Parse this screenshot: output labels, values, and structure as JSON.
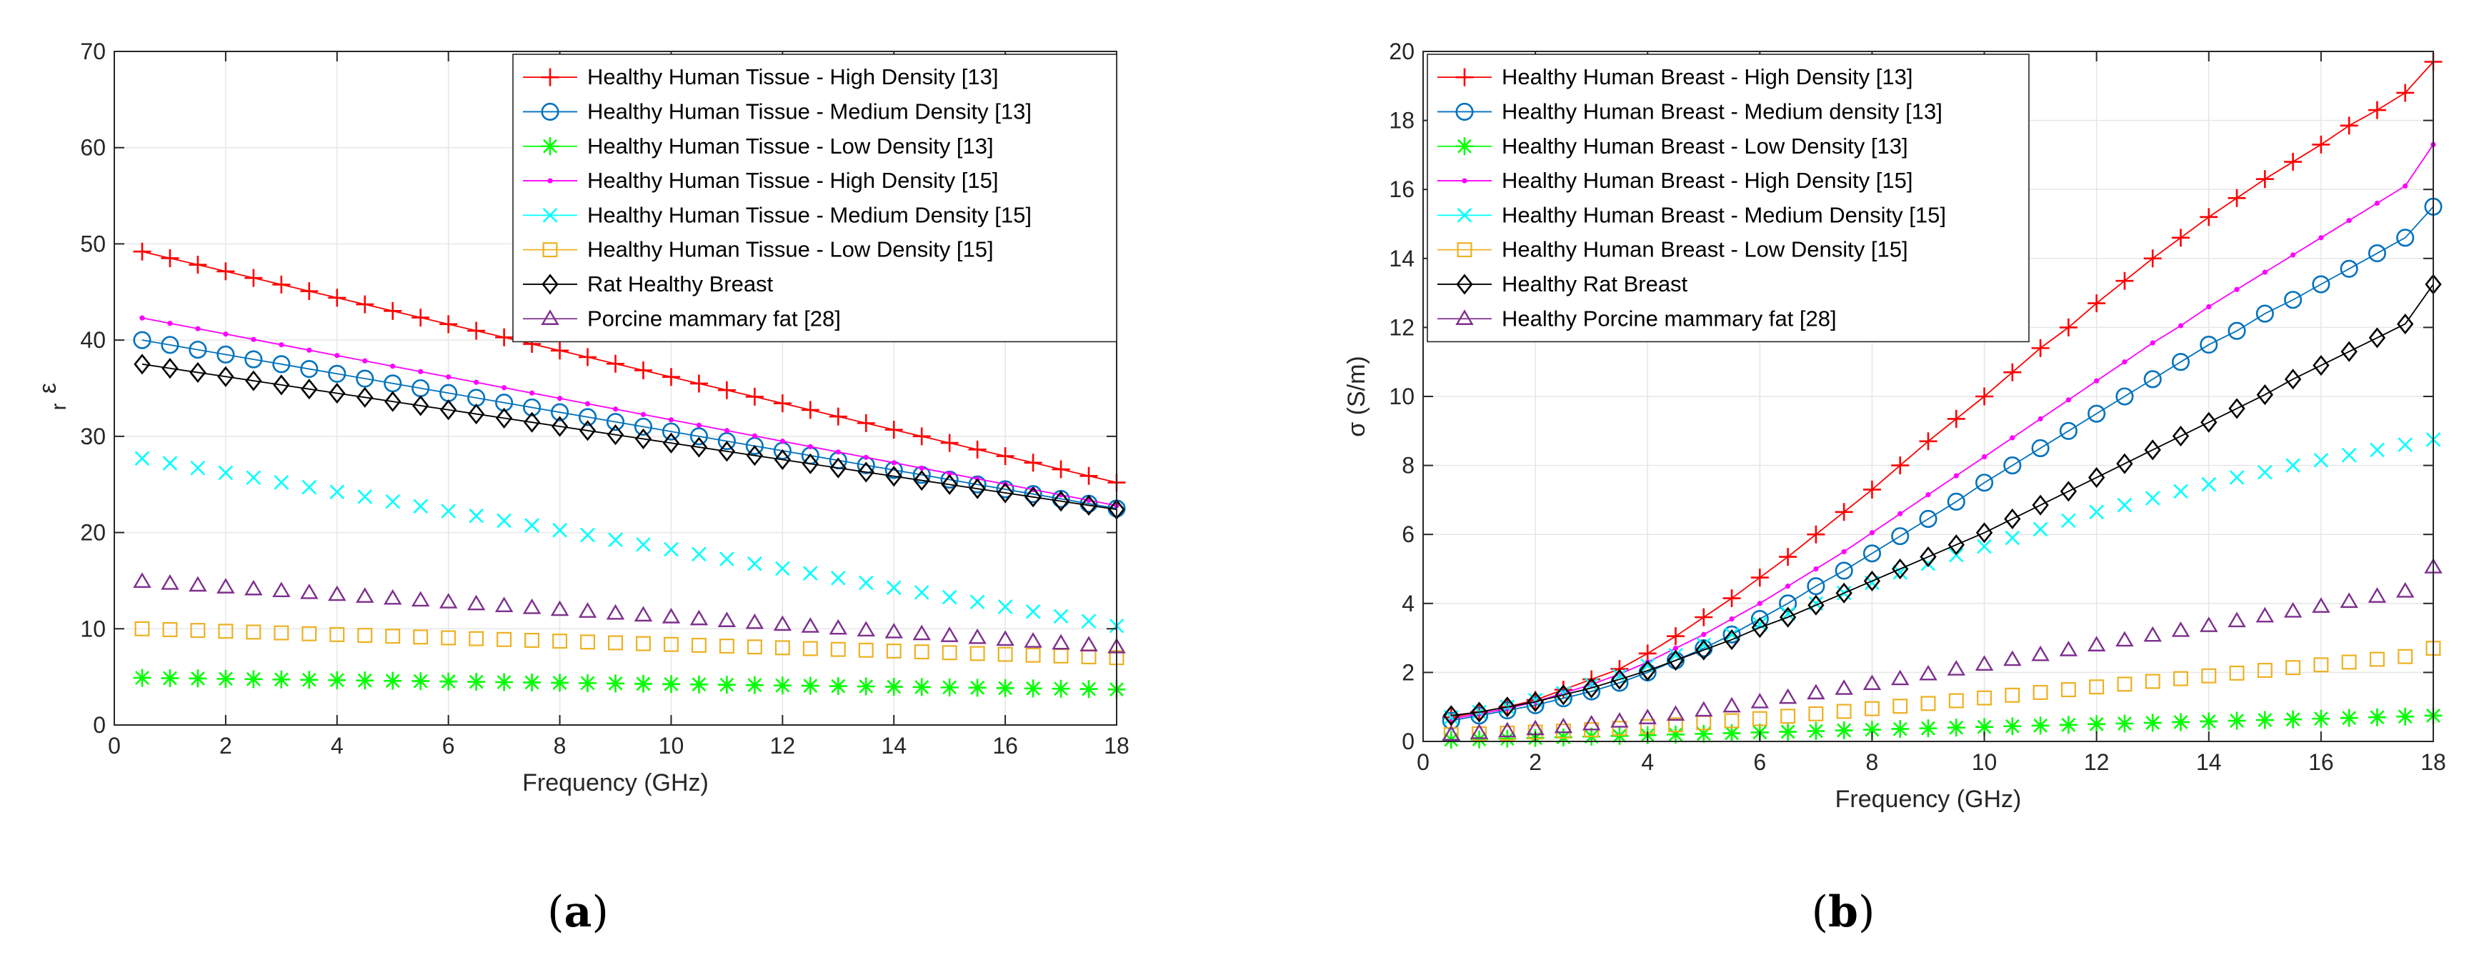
{
  "captions": {
    "a": "a",
    "b": "b"
  },
  "chart_data": [
    {
      "type": "line",
      "panel": "a",
      "xlabel": "Frequency (GHz)",
      "ylabel": "ε",
      "ylabel_sub": "r",
      "xlim": [
        0,
        18
      ],
      "ylim": [
        0,
        70
      ],
      "xticks": [
        0,
        2,
        4,
        6,
        8,
        10,
        12,
        14,
        16,
        18
      ],
      "yticks": [
        0,
        10,
        20,
        30,
        40,
        50,
        60,
        70
      ],
      "grid": true,
      "legend_position": "top-right",
      "x": {
        "start": 0.5,
        "end": 18,
        "step": 0.5
      },
      "series": [
        {
          "name": "Healthy Human Tissue - High Density [13]",
          "color": "#ff0000",
          "marker": "plus",
          "line": true,
          "start": 49.2,
          "end": 25.2
        },
        {
          "name": "Healthy Human Tissue -  Medium Density [13]",
          "color": "#0072bd",
          "marker": "circle",
          "line": true,
          "start": 40.0,
          "end": 22.5
        },
        {
          "name": "Healthy Human Tissue -  Low Density [13]",
          "color": "#00ff00",
          "marker": "asterisk",
          "line": false,
          "start": 4.9,
          "end": 3.7
        },
        {
          "name": "Healthy Human Tissue -  High Density [15]",
          "color": "#ff00ff",
          "marker": "dot",
          "line": true,
          "start": 42.3,
          "end": 22.8
        },
        {
          "name": "Healthy Human Tissue -  Medium Density [15]",
          "color": "#00ffff",
          "marker": "x",
          "line": false,
          "start": 27.7,
          "end": 10.3
        },
        {
          "name": "Healthy Human Tissue -  Low Density [15]",
          "color": "#edb120",
          "marker": "square",
          "line": false,
          "start": 10.0,
          "end": 7.0
        },
        {
          "name": "Rat Healthy Breast",
          "color": "#000000",
          "marker": "diamond",
          "line": true,
          "start": 37.5,
          "end": 22.4
        },
        {
          "name": "Porcine mammary fat [28]",
          "color": "#7e2f8e",
          "marker": "triangle",
          "line": false,
          "start": 14.9,
          "end": 8.1
        }
      ]
    },
    {
      "type": "line",
      "panel": "b",
      "xlabel": "Frequency (GHz)",
      "ylabel": "σ (S/m)",
      "xlim": [
        0,
        18
      ],
      "ylim": [
        0,
        20
      ],
      "xticks": [
        0,
        2,
        4,
        6,
        8,
        10,
        12,
        14,
        16,
        18
      ],
      "yticks": [
        0,
        2,
        4,
        6,
        8,
        10,
        12,
        14,
        16,
        18,
        20
      ],
      "grid": true,
      "legend_position": "top-left",
      "x": {
        "start": 0.5,
        "end": 18,
        "step": 0.5
      },
      "series": [
        {
          "name": "Healthy Human Breast - High Density [13]",
          "color": "#ff0000",
          "marker": "plus",
          "line": true,
          "values": [
            0.7,
            0.85,
            1.0,
            1.2,
            1.5,
            1.8,
            2.1,
            2.55,
            3.05,
            3.6,
            4.15,
            4.75,
            5.35,
            6.0,
            6.65,
            7.3,
            8.0,
            8.7,
            9.35,
            10.0,
            10.7,
            11.4,
            12.0,
            12.7,
            13.35,
            14.0,
            14.6,
            15.2,
            15.75,
            16.3,
            16.8,
            17.3,
            17.85,
            18.3,
            18.8,
            19.7
          ]
        },
        {
          "name": "Healthy Human Breast - Medium density [13]",
          "color": "#0072bd",
          "marker": "circle",
          "line": true,
          "values": [
            0.6,
            0.75,
            0.9,
            1.05,
            1.25,
            1.45,
            1.7,
            2.0,
            2.35,
            2.7,
            3.1,
            3.55,
            4.0,
            4.5,
            4.95,
            5.45,
            5.95,
            6.45,
            6.95,
            7.5,
            8.0,
            8.5,
            9.0,
            9.5,
            10.0,
            10.5,
            11.0,
            11.5,
            11.9,
            12.4,
            12.8,
            13.25,
            13.7,
            14.15,
            14.6,
            15.5
          ]
        },
        {
          "name": "Healthy Human Breast - Low Density [13]",
          "color": "#00ff00",
          "marker": "asterisk",
          "line": false,
          "values": [
            0.05,
            0.06,
            0.08,
            0.1,
            0.12,
            0.14,
            0.16,
            0.18,
            0.2,
            0.22,
            0.24,
            0.26,
            0.28,
            0.3,
            0.32,
            0.34,
            0.36,
            0.38,
            0.4,
            0.42,
            0.44,
            0.46,
            0.48,
            0.5,
            0.52,
            0.54,
            0.56,
            0.58,
            0.6,
            0.62,
            0.64,
            0.66,
            0.68,
            0.7,
            0.72,
            0.75
          ]
        },
        {
          "name": "Healthy Human Breast - High Density [15]",
          "color": "#ff00ff",
          "marker": "dot",
          "line": true,
          "values": [
            0.65,
            0.8,
            0.95,
            1.15,
            1.4,
            1.65,
            1.95,
            2.3,
            2.7,
            3.1,
            3.55,
            4.0,
            4.5,
            5.0,
            5.5,
            6.05,
            6.6,
            7.15,
            7.7,
            8.25,
            8.8,
            9.35,
            9.9,
            10.45,
            11.0,
            11.55,
            12.05,
            12.6,
            13.1,
            13.6,
            14.1,
            14.6,
            15.1,
            15.6,
            16.1,
            17.3
          ]
        },
        {
          "name": "Healthy Human Breast - Medium Density [15]",
          "color": "#00ffff",
          "marker": "x",
          "line": false,
          "values": [
            0.7,
            0.85,
            1.0,
            1.2,
            1.4,
            1.65,
            1.9,
            2.2,
            2.5,
            2.8,
            3.1,
            3.4,
            3.7,
            4.0,
            4.3,
            4.6,
            4.9,
            5.15,
            5.4,
            5.65,
            5.9,
            6.15,
            6.4,
            6.65,
            6.85,
            7.05,
            7.25,
            7.45,
            7.65,
            7.8,
            8.0,
            8.15,
            8.3,
            8.45,
            8.6,
            8.75
          ]
        },
        {
          "name": "Healthy Human Breast -  Low Density [15]",
          "color": "#edb120",
          "marker": "square",
          "line": false,
          "values": [
            0.2,
            0.22,
            0.24,
            0.27,
            0.3,
            0.34,
            0.38,
            0.43,
            0.48,
            0.54,
            0.6,
            0.66,
            0.73,
            0.8,
            0.87,
            0.95,
            1.02,
            1.1,
            1.18,
            1.26,
            1.34,
            1.42,
            1.5,
            1.58,
            1.66,
            1.74,
            1.82,
            1.9,
            1.98,
            2.06,
            2.14,
            2.22,
            2.3,
            2.38,
            2.46,
            2.7
          ]
        },
        {
          "name": "Healthy Rat  Breast",
          "color": "#000000",
          "marker": "diamond",
          "line": true,
          "values": [
            0.75,
            0.85,
            1.0,
            1.15,
            1.35,
            1.55,
            1.8,
            2.05,
            2.35,
            2.65,
            2.95,
            3.3,
            3.6,
            3.95,
            4.3,
            4.65,
            5.0,
            5.35,
            5.7,
            6.05,
            6.45,
            6.85,
            7.25,
            7.65,
            8.05,
            8.45,
            8.85,
            9.25,
            9.65,
            10.05,
            10.5,
            10.9,
            11.3,
            11.7,
            12.1,
            13.25
          ]
        },
        {
          "name": "Healthy Porcine mammary fat [28]",
          "color": "#7e2f8e",
          "marker": "triangle",
          "line": false,
          "values": [
            0.2,
            0.25,
            0.3,
            0.36,
            0.42,
            0.5,
            0.58,
            0.68,
            0.78,
            0.9,
            1.02,
            1.14,
            1.27,
            1.4,
            1.53,
            1.67,
            1.81,
            1.95,
            2.09,
            2.23,
            2.37,
            2.51,
            2.65,
            2.79,
            2.93,
            3.07,
            3.21,
            3.35,
            3.49,
            3.63,
            3.77,
            3.91,
            4.05,
            4.2,
            4.35,
            5.05
          ]
        }
      ]
    }
  ]
}
